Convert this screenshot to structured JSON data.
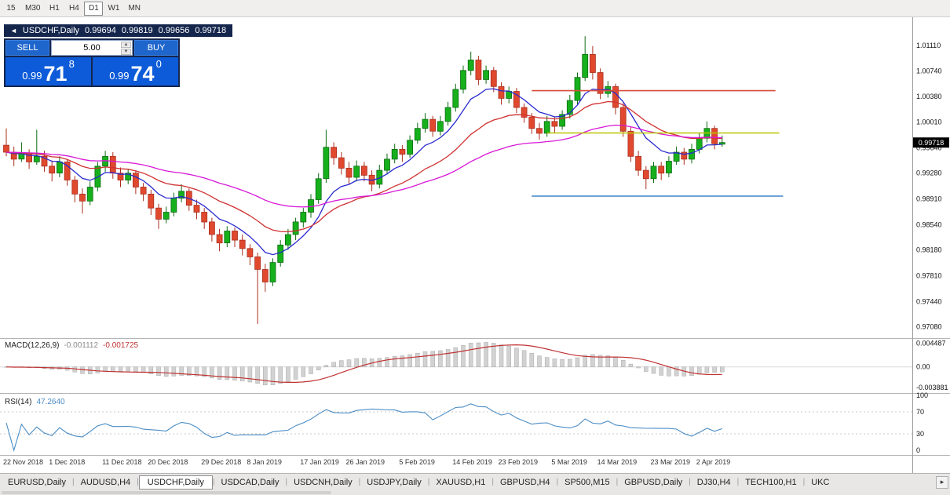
{
  "toolbar": {
    "timeframes": [
      {
        "label": "15",
        "active": false
      },
      {
        "label": "M30",
        "active": false
      },
      {
        "label": "H1",
        "active": false
      },
      {
        "label": "H4",
        "active": false
      },
      {
        "label": "D1",
        "active": true
      },
      {
        "label": "W1",
        "active": false
      },
      {
        "label": "MN",
        "active": false
      }
    ]
  },
  "icons": {
    "collapse": "◄",
    "spinner_up": "▲",
    "spinner_down": "▼",
    "scroll_right": "▸"
  },
  "chart": {
    "symbol_header": {
      "title": "USDCHF,Daily",
      "open": "0.99694",
      "high": "0.99819",
      "low": "0.99656",
      "close": "0.99718"
    },
    "trade_panel": {
      "sell_label": "SELL",
      "buy_label": "BUY",
      "volume": "5.00",
      "sell_price": {
        "prefix": "0.99",
        "big": "71",
        "sup": "8"
      },
      "buy_price": {
        "prefix": "0.99",
        "big": "74",
        "sup": "0"
      }
    }
  },
  "chart_data": {
    "type": "candlestick",
    "symbol": "USDCHF",
    "period": "Daily",
    "title": "USDCHF,Daily",
    "current_price": 0.99718,
    "current_price_text": "0.99718",
    "ylim": [
      0.9695,
      1.014
    ],
    "price_axis_labels": [
      "1.01110",
      "1.00740",
      "1.00380",
      "1.00010",
      "0.99640",
      "0.99280",
      "0.98910",
      "0.98540",
      "0.98180",
      "0.97810",
      "0.97440",
      "0.97080"
    ],
    "x_axis_labels": [
      {
        "label": "22 Nov 2018",
        "index": 0
      },
      {
        "label": "1 Dec 2018",
        "index": 6
      },
      {
        "label": "11 Dec 2018",
        "index": 13
      },
      {
        "label": "20 Dec 2018",
        "index": 19
      },
      {
        "label": "29 Dec 2018",
        "index": 26
      },
      {
        "label": "8 Jan 2019",
        "index": 32
      },
      {
        "label": "17 Jan 2019",
        "index": 39
      },
      {
        "label": "26 Jan 2019",
        "index": 45
      },
      {
        "label": "5 Feb 2019",
        "index": 52
      },
      {
        "label": "14 Feb 2019",
        "index": 59
      },
      {
        "label": "23 Feb 2019",
        "index": 65
      },
      {
        "label": "5 Mar 2019",
        "index": 72
      },
      {
        "label": "14 Mar 2019",
        "index": 78
      },
      {
        "label": "23 Mar 2019",
        "index": 85
      },
      {
        "label": "2 Apr 2019",
        "index": 91
      }
    ],
    "colors": {
      "up": "#16b01c",
      "down": "#e0492e",
      "up_border": "#0d6b12",
      "down_border": "#aa2d1d"
    },
    "moving_averages": [
      {
        "name": "ma-fast-line",
        "period": 8,
        "color": "#2a2ad0"
      },
      {
        "name": "ma-mid-line",
        "period": 20,
        "color": "#d03030"
      },
      {
        "name": "ma-slow-line",
        "period": 45,
        "color": "#d818d8"
      }
    ],
    "levels": [
      {
        "name": "resistance-line",
        "price": 1.0046,
        "color": "#d84c3a",
        "from_index": 69,
        "to_index": 101,
        "width": 1.6
      },
      {
        "name": "pivot-line",
        "price": 0.99855,
        "color": "#b9c400",
        "from_index": 71,
        "to_index": 101.5,
        "width": 1.6
      },
      {
        "name": "support-line",
        "price": 0.9895,
        "color": "#3d85c8",
        "from_index": 69,
        "to_index": 102,
        "width": 1.6
      }
    ],
    "candles": [
      [
        0.9968,
        0.9992,
        0.9952,
        0.9958
      ],
      [
        0.9958,
        0.9966,
        0.9938,
        0.9948
      ],
      [
        0.9948,
        0.9972,
        0.9944,
        0.9957
      ],
      [
        0.9957,
        0.9962,
        0.9934,
        0.9944
      ],
      [
        0.9944,
        0.999,
        0.994,
        0.9952
      ],
      [
        0.9952,
        0.996,
        0.993,
        0.9938
      ],
      [
        0.9938,
        0.9946,
        0.9916,
        0.9928
      ],
      [
        0.9928,
        0.9952,
        0.9922,
        0.9944
      ],
      [
        0.9944,
        0.9948,
        0.991,
        0.9918
      ],
      [
        0.9918,
        0.9924,
        0.9886,
        0.9898
      ],
      [
        0.9898,
        0.9906,
        0.987,
        0.9888
      ],
      [
        0.9888,
        0.9916,
        0.9882,
        0.9908
      ],
      [
        0.9908,
        0.9944,
        0.9902,
        0.9938
      ],
      [
        0.9938,
        0.996,
        0.993,
        0.9952
      ],
      [
        0.9952,
        0.9958,
        0.992,
        0.9928
      ],
      [
        0.9928,
        0.9936,
        0.9908,
        0.9918
      ],
      [
        0.9918,
        0.9934,
        0.9912,
        0.9928
      ],
      [
        0.9928,
        0.9932,
        0.9898,
        0.9908
      ],
      [
        0.9908,
        0.9914,
        0.9888,
        0.9898
      ],
      [
        0.9898,
        0.9904,
        0.9868,
        0.9878
      ],
      [
        0.9878,
        0.9884,
        0.9848,
        0.9862
      ],
      [
        0.9862,
        0.988,
        0.9856,
        0.9872
      ],
      [
        0.9872,
        0.99,
        0.9866,
        0.9892
      ],
      [
        0.9892,
        0.9912,
        0.9886,
        0.9902
      ],
      [
        0.9902,
        0.9906,
        0.9874,
        0.9882
      ],
      [
        0.9882,
        0.989,
        0.9862,
        0.9872
      ],
      [
        0.9872,
        0.9878,
        0.9848,
        0.9858
      ],
      [
        0.9858,
        0.9864,
        0.983,
        0.984
      ],
      [
        0.984,
        0.9848,
        0.9816,
        0.9828
      ],
      [
        0.9828,
        0.9852,
        0.9822,
        0.9845
      ],
      [
        0.9845,
        0.985,
        0.9822,
        0.9832
      ],
      [
        0.9832,
        0.984,
        0.981,
        0.982
      ],
      [
        0.982,
        0.9826,
        0.9796,
        0.9808
      ],
      [
        0.9808,
        0.9814,
        0.9712,
        0.979
      ],
      [
        0.979,
        0.9798,
        0.9758,
        0.9772
      ],
      [
        0.9772,
        0.9806,
        0.9766,
        0.98
      ],
      [
        0.98,
        0.9832,
        0.9794,
        0.9825
      ],
      [
        0.9825,
        0.9848,
        0.9818,
        0.984
      ],
      [
        0.984,
        0.9864,
        0.9832,
        0.9858
      ],
      [
        0.9858,
        0.9878,
        0.985,
        0.9872
      ],
      [
        0.9872,
        0.9898,
        0.9864,
        0.989
      ],
      [
        0.989,
        0.9928,
        0.9884,
        0.992
      ],
      [
        0.992,
        0.999,
        0.9914,
        0.9965
      ],
      [
        0.9965,
        0.9972,
        0.994,
        0.995
      ],
      [
        0.995,
        0.9958,
        0.9926,
        0.9935
      ],
      [
        0.9935,
        0.9944,
        0.9912,
        0.9922
      ],
      [
        0.9922,
        0.9946,
        0.9916,
        0.9938
      ],
      [
        0.9938,
        0.9944,
        0.9916,
        0.9925
      ],
      [
        0.9925,
        0.9932,
        0.9902,
        0.9912
      ],
      [
        0.9912,
        0.994,
        0.9906,
        0.9932
      ],
      [
        0.9932,
        0.9956,
        0.9926,
        0.9948
      ],
      [
        0.9948,
        0.997,
        0.9942,
        0.9962
      ],
      [
        0.9962,
        0.9968,
        0.9944,
        0.9955
      ],
      [
        0.9955,
        0.9982,
        0.995,
        0.9975
      ],
      [
        0.9975,
        1.0,
        0.997,
        0.9992
      ],
      [
        0.9992,
        1.0014,
        0.9986,
        1.0005
      ],
      [
        1.0005,
        1.001,
        0.998,
        0.9988
      ],
      [
        0.9988,
        1.001,
        0.9982,
        1.0002
      ],
      [
        1.0002,
        1.003,
        0.9996,
        1.0022
      ],
      [
        1.0022,
        1.0056,
        1.0016,
        1.0048
      ],
      [
        1.0048,
        1.0082,
        1.0042,
        1.0075
      ],
      [
        1.0075,
        1.0102,
        1.0068,
        1.009
      ],
      [
        1.009,
        1.0096,
        1.0054,
        1.0062
      ],
      [
        1.0062,
        1.0082,
        1.0056,
        1.0075
      ],
      [
        1.0075,
        1.008,
        1.0044,
        1.0052
      ],
      [
        1.0052,
        1.0058,
        1.0026,
        1.0035
      ],
      [
        1.0035,
        1.0052,
        1.0028,
        1.0045
      ],
      [
        1.0045,
        1.005,
        1.0014,
        1.0022
      ],
      [
        1.0022,
        1.0028,
        1.0,
        1.0008
      ],
      [
        1.0008,
        1.0014,
        0.9984,
        0.9992
      ],
      [
        0.9992,
        1.0,
        0.9976,
        0.9985
      ],
      [
        0.9985,
        1.001,
        0.998,
        1.0002
      ],
      [
        1.0002,
        1.0008,
        0.9986,
        0.9995
      ],
      [
        0.9995,
        1.0018,
        0.999,
        1.0012
      ],
      [
        1.0012,
        1.004,
        1.0006,
        1.0032
      ],
      [
        1.0032,
        1.0072,
        1.0026,
        1.0065
      ],
      [
        1.0065,
        1.0124,
        1.006,
        1.0098
      ],
      [
        1.0098,
        1.011,
        1.0062,
        1.0072
      ],
      [
        1.0072,
        1.0078,
        1.0034,
        1.0042
      ],
      [
        1.0042,
        1.006,
        1.0036,
        1.0052
      ],
      [
        1.0052,
        1.0056,
        1.0012,
        1.0022
      ],
      [
        1.0022,
        1.0028,
        0.998,
        0.9988
      ],
      [
        0.9988,
        0.9994,
        0.9944,
        0.9952
      ],
      [
        0.9952,
        0.996,
        0.9924,
        0.9932
      ],
      [
        0.9932,
        0.9938,
        0.9905,
        0.992
      ],
      [
        0.992,
        0.9944,
        0.9914,
        0.9938
      ],
      [
        0.9938,
        0.9944,
        0.9918,
        0.9928
      ],
      [
        0.9928,
        0.9952,
        0.9922,
        0.9945
      ],
      [
        0.9945,
        0.9966,
        0.994,
        0.9958
      ],
      [
        0.9958,
        0.9964,
        0.994,
        0.9948
      ],
      [
        0.9948,
        0.997,
        0.9942,
        0.9962
      ],
      [
        0.9962,
        0.9986,
        0.9956,
        0.9978
      ],
      [
        0.9978,
        1.0002,
        0.9972,
        0.9992
      ],
      [
        0.9992,
        0.9996,
        0.9962,
        0.997
      ],
      [
        0.99694,
        0.99819,
        0.99656,
        0.99718
      ]
    ],
    "indicators": [
      {
        "name": "MACD",
        "label": "MACD(12,26,9)",
        "main_value": "-0.001112",
        "signal_value": "-0.001725",
        "params": {
          "fast": 12,
          "slow": 26,
          "signal": 9
        },
        "ylim": [
          -0.0045,
          0.005
        ],
        "axis_labels": [
          "0.004487",
          "0.00",
          "-0.003881"
        ],
        "colors": {
          "histogram": "#d2d2d2",
          "histogram_border": "#a8a8a8",
          "signal": "#c03232"
        }
      },
      {
        "name": "RSI",
        "label": "RSI(14)",
        "value": "47.2640",
        "period": 14,
        "ylim": [
          0,
          100
        ],
        "levels": [
          70,
          30
        ],
        "axis_labels": [
          "100",
          "70",
          "30",
          "0"
        ],
        "color": "#4a8cc4"
      }
    ]
  },
  "tabs": {
    "separator": "|",
    "items": [
      {
        "label": "EURUSD,Daily",
        "active": false
      },
      {
        "label": "AUDUSD,H4",
        "active": false
      },
      {
        "label": "USDCHF,Daily",
        "active": true
      },
      {
        "label": "USDCAD,Daily",
        "active": false
      },
      {
        "label": "USDCNH,Daily",
        "active": false
      },
      {
        "label": "USDJPY,Daily",
        "active": false
      },
      {
        "label": "XAUUSD,H1",
        "active": false
      },
      {
        "label": "GBPUSD,H4",
        "active": false
      },
      {
        "label": "SP500,M15",
        "active": false
      },
      {
        "label": "GBPUSD,Daily",
        "active": false
      },
      {
        "label": "DJ30,H4",
        "active": false
      },
      {
        "label": "TECH100,H1",
        "active": false
      },
      {
        "label": "UKC",
        "active": false
      }
    ]
  }
}
